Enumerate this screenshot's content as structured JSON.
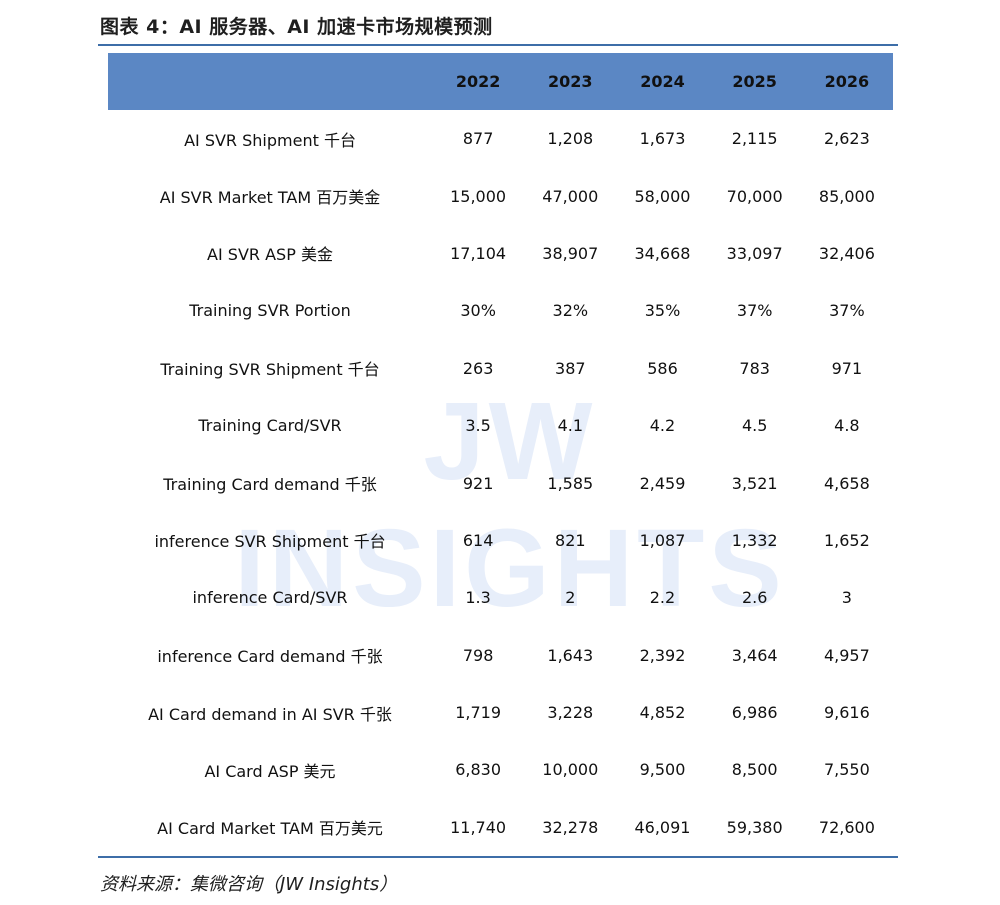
{
  "title": "图表 4：AI 服务器、AI 加速卡市场规模预测",
  "watermark": "JW INSIGHTS",
  "source": "资料来源：集微咨询（JW Insights）",
  "colors": {
    "header_bg": "#5b87c4",
    "rule": "#3d6ea8"
  },
  "table": {
    "headers": [
      "",
      "2022",
      "2023",
      "2024",
      "2025",
      "2026"
    ],
    "rows": [
      {
        "label": "AI SVR Shipment  千台",
        "values": [
          "877",
          "1,208",
          "1,673",
          "2,115",
          "2,623"
        ]
      },
      {
        "label": "AI SVR Market TAM  百万美金",
        "values": [
          "15,000",
          "47,000",
          "58,000",
          "70,000",
          "85,000"
        ]
      },
      {
        "label": "AI SVR ASP  美金",
        "values": [
          "17,104",
          "38,907",
          "34,668",
          "33,097",
          "32,406"
        ]
      },
      {
        "label": "Training SVR Portion",
        "values": [
          "30%",
          "32%",
          "35%",
          "37%",
          "37%"
        ]
      },
      {
        "label": "Training SVR Shipment  千台",
        "values": [
          "263",
          "387",
          "586",
          "783",
          "971"
        ]
      },
      {
        "label": "Training Card/SVR",
        "values": [
          "3.5",
          "4.1",
          "4.2",
          "4.5",
          "4.8"
        ]
      },
      {
        "label": "Training Card demand  千张",
        "values": [
          "921",
          "1,585",
          "2,459",
          "3,521",
          "4,658"
        ]
      },
      {
        "label": "inference SVR Shipment  千台",
        "values": [
          "614",
          "821",
          "1,087",
          "1,332",
          "1,652"
        ]
      },
      {
        "label": "inference Card/SVR",
        "values": [
          "1.3",
          "2",
          "2.2",
          "2.6",
          "3"
        ]
      },
      {
        "label": "inference Card demand  千张",
        "values": [
          "798",
          "1,643",
          "2,392",
          "3,464",
          "4,957"
        ]
      },
      {
        "label": "AI Card demand in AI SVR  千张",
        "values": [
          "1,719",
          "3,228",
          "4,852",
          "6,986",
          "9,616"
        ]
      },
      {
        "label": "AI Card ASP  美元",
        "values": [
          "6,830",
          "10,000",
          "9,500",
          "8,500",
          "7,550"
        ]
      },
      {
        "label": "AI Card Market TAM  百万美元",
        "values": [
          "11,740",
          "32,278",
          "46,091",
          "59,380",
          "72,600"
        ]
      }
    ]
  }
}
